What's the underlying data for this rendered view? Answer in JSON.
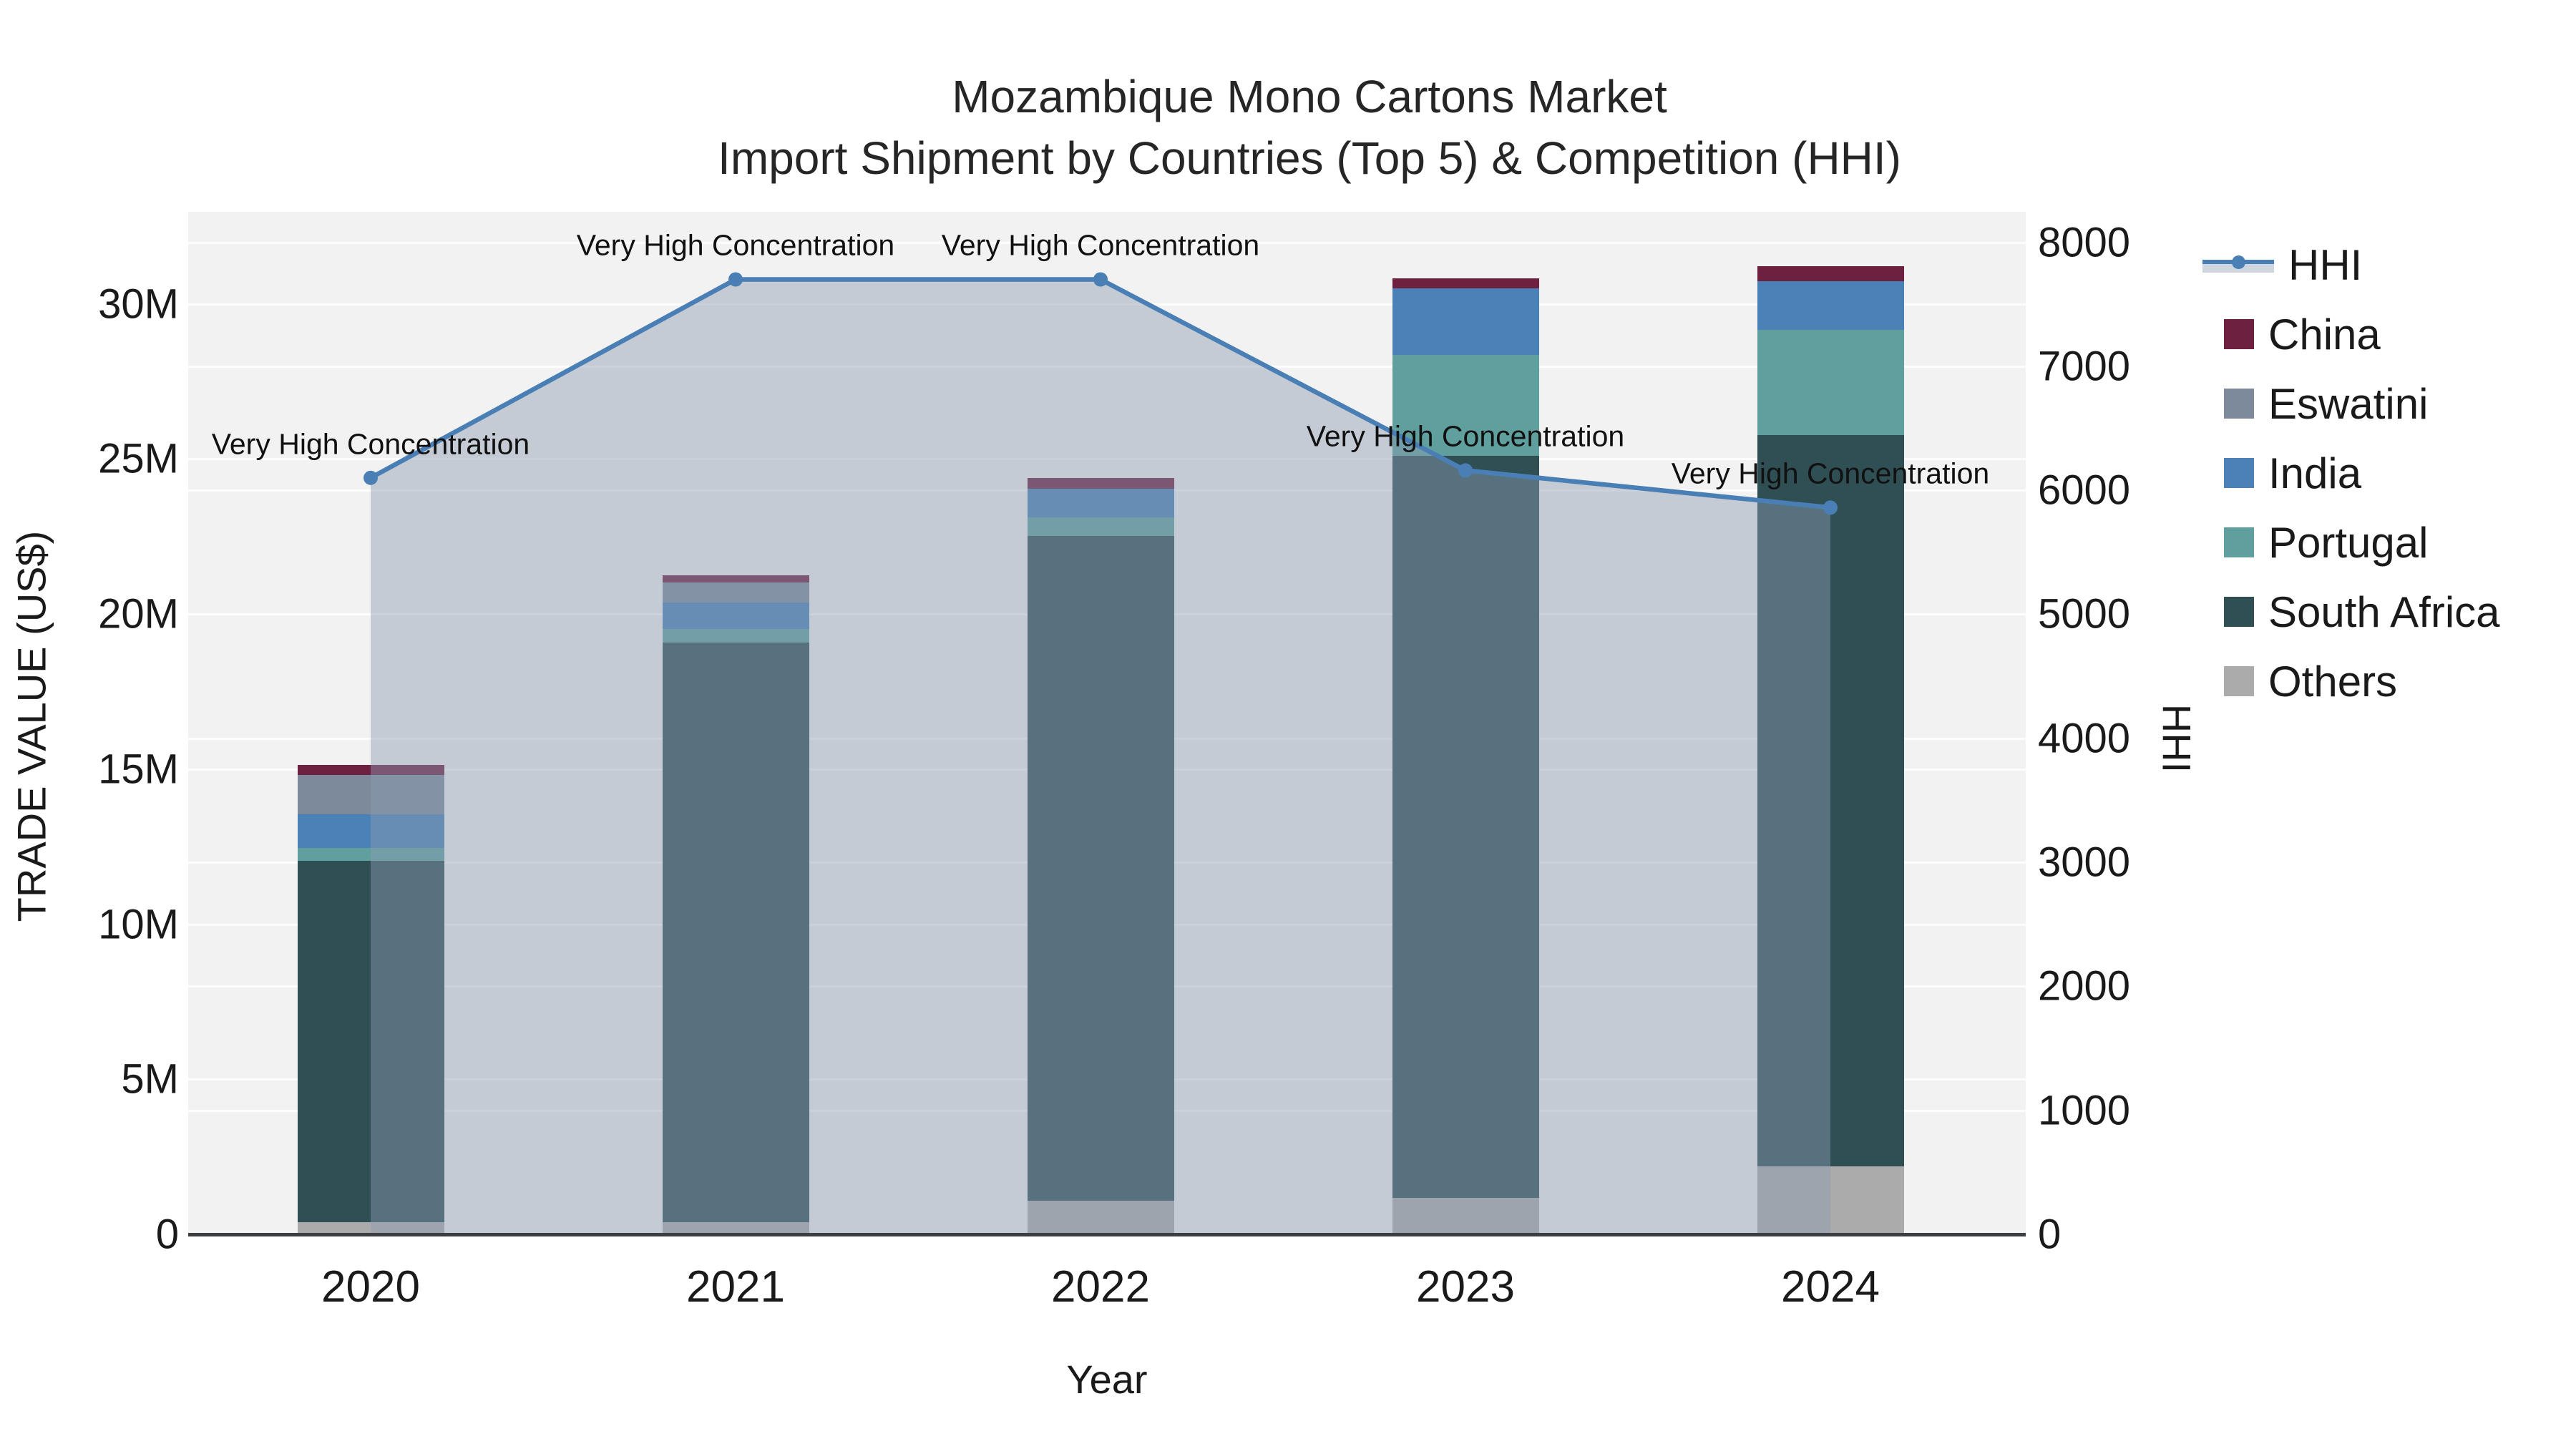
{
  "title": {
    "line1": "Mozambique Mono Cartons Market",
    "line2": "Import Shipment by Countries (Top 5) & Competition (HHI)"
  },
  "axes": {
    "x": {
      "title": "Year",
      "categories": [
        "2020",
        "2021",
        "2022",
        "2023",
        "2024"
      ]
    },
    "y_left": {
      "title": "TRADE VALUE (US$)",
      "tick_labels": [
        "0",
        "5M",
        "10M",
        "15M",
        "20M",
        "25M",
        "30M"
      ],
      "tick_values_millions": [
        0,
        5,
        10,
        15,
        20,
        25,
        30
      ]
    },
    "y_right": {
      "title": "HHI",
      "tick_labels": [
        "0",
        "1000",
        "2000",
        "3000",
        "4000",
        "5000",
        "6000",
        "7000",
        "8000"
      ],
      "tick_values": [
        0,
        1000,
        2000,
        3000,
        4000,
        5000,
        6000,
        7000,
        8000
      ]
    }
  },
  "legend": {
    "items": [
      {
        "label": "HHI",
        "type": "line"
      },
      {
        "label": "China",
        "type": "box"
      },
      {
        "label": "Eswatini",
        "type": "box"
      },
      {
        "label": "India",
        "type": "box"
      },
      {
        "label": "Portugal",
        "type": "box"
      },
      {
        "label": "South Africa",
        "type": "box"
      },
      {
        "label": "Others",
        "type": "box"
      }
    ]
  },
  "colors": {
    "plot_background": "#f2f2f2",
    "hhi_line": "#4a7fb5",
    "hhi_area_fill": "rgba(139,155,178,0.45)",
    "axis_line": "#3b3f42"
  },
  "chart_data": {
    "type": "bar+line",
    "title": "Mozambique Mono Cartons Market — Import Shipment by Countries (Top 5) & Competition (HHI)",
    "categories": [
      "2020",
      "2021",
      "2022",
      "2023",
      "2024"
    ],
    "bar_value_unit": "US$ millions",
    "bar_stack_order_bottom_to_top": [
      "Others",
      "South Africa",
      "Portugal",
      "India",
      "Eswatini",
      "China"
    ],
    "series": [
      {
        "name": "Others",
        "color": "#ababab",
        "values": [
          0.39,
          0.4,
          1.08,
          1.17,
          2.19
        ]
      },
      {
        "name": "South Africa",
        "color": "#2f4f54",
        "values": [
          11.65,
          18.67,
          21.43,
          23.93,
          23.57
        ]
      },
      {
        "name": "Portugal",
        "color": "#5fa09e",
        "values": [
          0.41,
          0.45,
          0.61,
          3.25,
          3.4
        ]
      },
      {
        "name": "India",
        "color": "#4a82b8",
        "values": [
          1.09,
          0.85,
          0.91,
          2.15,
          1.57
        ]
      },
      {
        "name": "Eswatini",
        "color": "#7c8a9b",
        "values": [
          1.26,
          0.64,
          0,
          0,
          0
        ]
      },
      {
        "name": "China",
        "color": "#6e2040",
        "values": [
          0.33,
          0.23,
          0.35,
          0.33,
          0.48
        ]
      }
    ],
    "bar_totals_millions": [
      15.13,
      21.24,
      24.38,
      30.83,
      31.21
    ],
    "line_series": {
      "name": "HHI",
      "values": [
        6100,
        7700,
        7700,
        6160,
        5860
      ],
      "axis": "right"
    },
    "annotations": [
      {
        "x": "2020",
        "text": "Very High Concentration"
      },
      {
        "x": "2021",
        "text": "Very High Concentration"
      },
      {
        "x": "2022",
        "text": "Very High Concentration"
      },
      {
        "x": "2023",
        "text": "Very High Concentration"
      },
      {
        "x": "2024",
        "text": "Very High Concentration"
      }
    ],
    "ylim_left_millions": [
      0,
      33
    ],
    "ylim_right": [
      0,
      8000
    ],
    "grid": true,
    "legend_position": "right"
  }
}
